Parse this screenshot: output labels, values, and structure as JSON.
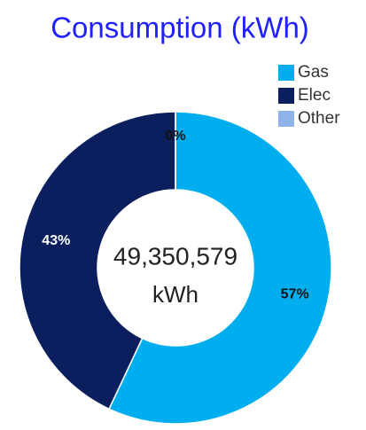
{
  "chart_data": {
    "type": "donut",
    "title": "Consumption (kWh)",
    "categories": [
      "Gas",
      "Elec",
      "Other"
    ],
    "values": [
      57,
      43,
      0
    ],
    "value_labels": [
      "57%",
      "43%",
      "0%"
    ],
    "colors": [
      "#00aeef",
      "#0b1f5e",
      "#8fb3e8"
    ],
    "center_value": "49,350,579",
    "center_unit": "kWh",
    "legend": "top-right"
  }
}
